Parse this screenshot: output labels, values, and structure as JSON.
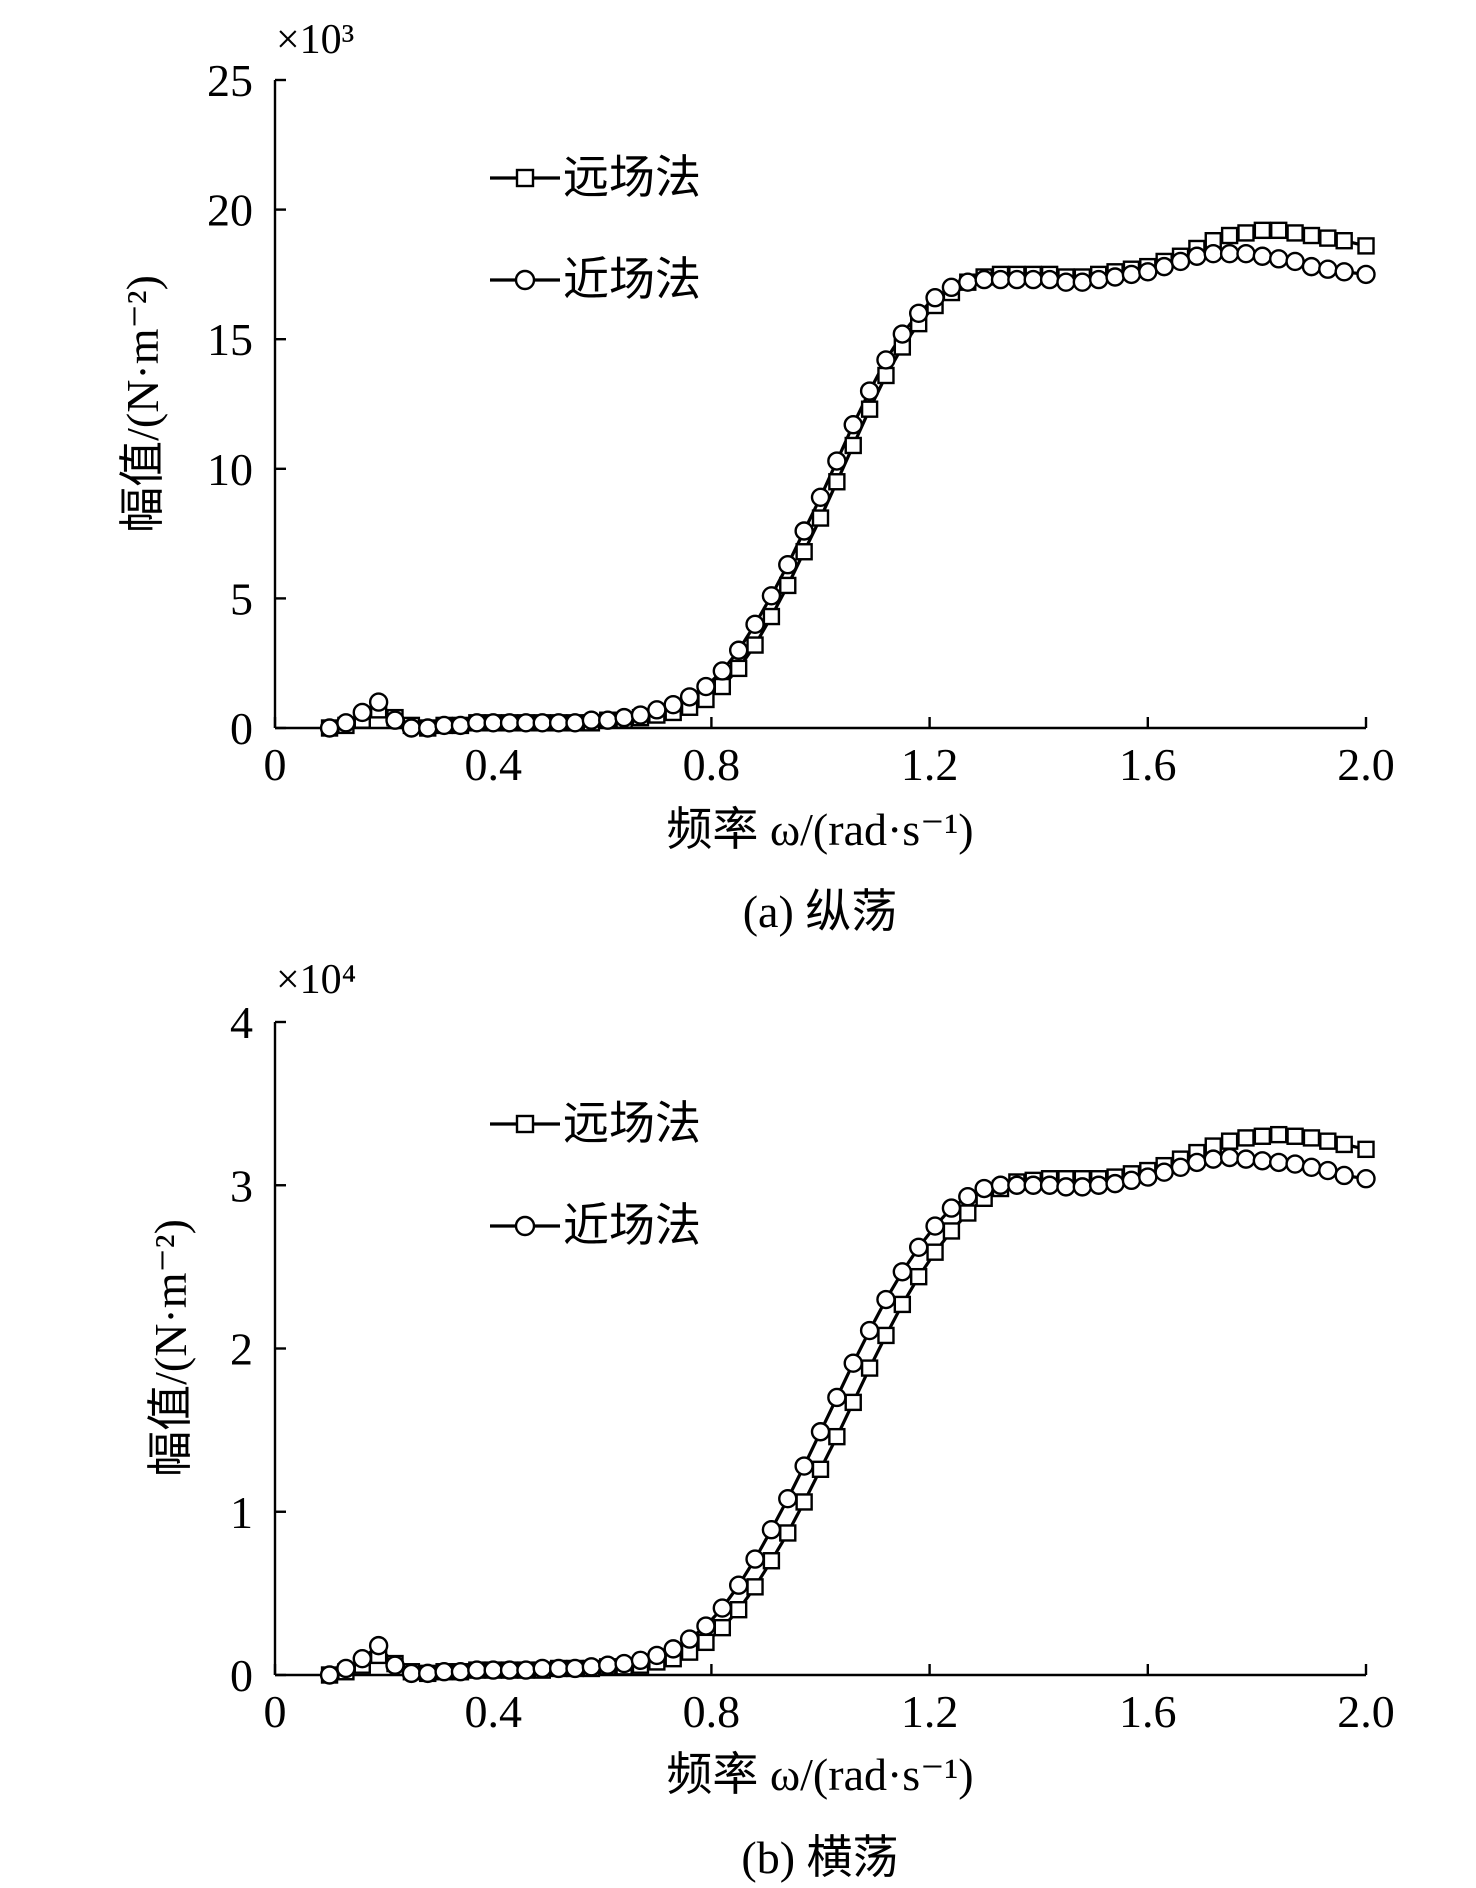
{
  "chart_data": [
    {
      "type": "line",
      "caption": "(a) 纵荡",
      "multiplier": "×10³",
      "xlabel": "频率 ω/(rad·s⁻¹)",
      "ylabel": "幅值/(N·m⁻²)",
      "xlim": [
        0,
        2.0
      ],
      "ylim": [
        0,
        25
      ],
      "xticks": [
        "0",
        "0.4",
        "0.8",
        "1.2",
        "1.6",
        "2.0"
      ],
      "yticks": [
        "0",
        "5",
        "10",
        "15",
        "20",
        "25"
      ],
      "legend": "upper-left",
      "grid": false,
      "series": [
        {
          "name": "远场法",
          "marker": "square",
          "x": [
            0.1,
            0.13,
            0.16,
            0.19,
            0.22,
            0.25,
            0.28,
            0.31,
            0.34,
            0.37,
            0.4,
            0.43,
            0.46,
            0.49,
            0.52,
            0.55,
            0.58,
            0.61,
            0.64,
            0.67,
            0.7,
            0.73,
            0.76,
            0.79,
            0.82,
            0.85,
            0.88,
            0.91,
            0.94,
            0.97,
            1.0,
            1.03,
            1.06,
            1.09,
            1.12,
            1.15,
            1.18,
            1.21,
            1.24,
            1.27,
            1.3,
            1.33,
            1.36,
            1.39,
            1.42,
            1.45,
            1.48,
            1.51,
            1.54,
            1.57,
            1.6,
            1.63,
            1.66,
            1.69,
            1.72,
            1.75,
            1.78,
            1.81,
            1.84,
            1.87,
            1.9,
            1.93,
            1.96,
            2.0
          ],
          "values": [
            0.0,
            0.1,
            0.3,
            0.7,
            0.4,
            0.1,
            0.0,
            0.1,
            0.1,
            0.2,
            0.2,
            0.2,
            0.2,
            0.2,
            0.2,
            0.2,
            0.2,
            0.3,
            0.3,
            0.4,
            0.5,
            0.6,
            0.8,
            1.1,
            1.6,
            2.3,
            3.2,
            4.3,
            5.5,
            6.8,
            8.1,
            9.5,
            10.9,
            12.3,
            13.6,
            14.7,
            15.6,
            16.3,
            16.8,
            17.2,
            17.4,
            17.5,
            17.5,
            17.5,
            17.5,
            17.4,
            17.4,
            17.5,
            17.6,
            17.7,
            17.8,
            18.0,
            18.2,
            18.5,
            18.8,
            19.0,
            19.1,
            19.2,
            19.2,
            19.1,
            19.0,
            18.9,
            18.8,
            18.6
          ]
        },
        {
          "name": "近场法",
          "marker": "circle",
          "x": [
            0.1,
            0.13,
            0.16,
            0.19,
            0.22,
            0.25,
            0.28,
            0.31,
            0.34,
            0.37,
            0.4,
            0.43,
            0.46,
            0.49,
            0.52,
            0.55,
            0.58,
            0.61,
            0.64,
            0.67,
            0.7,
            0.73,
            0.76,
            0.79,
            0.82,
            0.85,
            0.88,
            0.91,
            0.94,
            0.97,
            1.0,
            1.03,
            1.06,
            1.09,
            1.12,
            1.15,
            1.18,
            1.21,
            1.24,
            1.27,
            1.3,
            1.33,
            1.36,
            1.39,
            1.42,
            1.45,
            1.48,
            1.51,
            1.54,
            1.57,
            1.6,
            1.63,
            1.66,
            1.69,
            1.72,
            1.75,
            1.78,
            1.81,
            1.84,
            1.87,
            1.9,
            1.93,
            1.96,
            2.0
          ],
          "values": [
            0.0,
            0.2,
            0.6,
            1.0,
            0.3,
            0.0,
            0.0,
            0.1,
            0.1,
            0.2,
            0.2,
            0.2,
            0.2,
            0.2,
            0.2,
            0.2,
            0.3,
            0.3,
            0.4,
            0.5,
            0.7,
            0.9,
            1.2,
            1.6,
            2.2,
            3.0,
            4.0,
            5.1,
            6.3,
            7.6,
            8.9,
            10.3,
            11.7,
            13.0,
            14.2,
            15.2,
            16.0,
            16.6,
            17.0,
            17.2,
            17.3,
            17.3,
            17.3,
            17.3,
            17.3,
            17.2,
            17.2,
            17.3,
            17.4,
            17.5,
            17.6,
            17.8,
            18.0,
            18.2,
            18.3,
            18.3,
            18.3,
            18.2,
            18.1,
            18.0,
            17.8,
            17.7,
            17.6,
            17.5
          ]
        }
      ]
    },
    {
      "type": "line",
      "caption": "(b) 横荡",
      "multiplier": "×10⁴",
      "xlabel": "频率 ω/(rad·s⁻¹)",
      "ylabel": "幅值/(N·m⁻²)",
      "xlim": [
        0,
        2.0
      ],
      "ylim": [
        0,
        4
      ],
      "xticks": [
        "0",
        "0.4",
        "0.8",
        "1.2",
        "1.6",
        "2.0"
      ],
      "yticks": [
        "0",
        "1",
        "2",
        "3",
        "4"
      ],
      "legend": "upper-left",
      "grid": false,
      "series": [
        {
          "name": "远场法",
          "marker": "square",
          "x": [
            0.1,
            0.13,
            0.16,
            0.19,
            0.22,
            0.25,
            0.28,
            0.31,
            0.34,
            0.37,
            0.4,
            0.43,
            0.46,
            0.49,
            0.52,
            0.55,
            0.58,
            0.61,
            0.64,
            0.67,
            0.7,
            0.73,
            0.76,
            0.79,
            0.82,
            0.85,
            0.88,
            0.91,
            0.94,
            0.97,
            1.0,
            1.03,
            1.06,
            1.09,
            1.12,
            1.15,
            1.18,
            1.21,
            1.24,
            1.27,
            1.3,
            1.33,
            1.36,
            1.39,
            1.42,
            1.45,
            1.48,
            1.51,
            1.54,
            1.57,
            1.6,
            1.63,
            1.66,
            1.69,
            1.72,
            1.75,
            1.78,
            1.81,
            1.84,
            1.87,
            1.9,
            1.93,
            1.96,
            2.0
          ],
          "values": [
            0.0,
            0.02,
            0.06,
            0.12,
            0.07,
            0.02,
            0.01,
            0.02,
            0.02,
            0.03,
            0.03,
            0.03,
            0.03,
            0.03,
            0.04,
            0.04,
            0.04,
            0.05,
            0.05,
            0.06,
            0.08,
            0.1,
            0.14,
            0.2,
            0.29,
            0.4,
            0.54,
            0.7,
            0.87,
            1.06,
            1.26,
            1.46,
            1.67,
            1.88,
            2.08,
            2.27,
            2.44,
            2.59,
            2.72,
            2.83,
            2.92,
            2.98,
            3.02,
            3.03,
            3.04,
            3.04,
            3.04,
            3.04,
            3.05,
            3.07,
            3.09,
            3.12,
            3.16,
            3.2,
            3.24,
            3.27,
            3.29,
            3.3,
            3.31,
            3.3,
            3.29,
            3.27,
            3.25,
            3.22
          ]
        },
        {
          "name": "近场法",
          "marker": "circle",
          "x": [
            0.1,
            0.13,
            0.16,
            0.19,
            0.22,
            0.25,
            0.28,
            0.31,
            0.34,
            0.37,
            0.4,
            0.43,
            0.46,
            0.49,
            0.52,
            0.55,
            0.58,
            0.61,
            0.64,
            0.67,
            0.7,
            0.73,
            0.76,
            0.79,
            0.82,
            0.85,
            0.88,
            0.91,
            0.94,
            0.97,
            1.0,
            1.03,
            1.06,
            1.09,
            1.12,
            1.15,
            1.18,
            1.21,
            1.24,
            1.27,
            1.3,
            1.33,
            1.36,
            1.39,
            1.42,
            1.45,
            1.48,
            1.51,
            1.54,
            1.57,
            1.6,
            1.63,
            1.66,
            1.69,
            1.72,
            1.75,
            1.78,
            1.81,
            1.84,
            1.87,
            1.9,
            1.93,
            1.96,
            2.0
          ],
          "values": [
            0.0,
            0.04,
            0.1,
            0.18,
            0.06,
            0.01,
            0.01,
            0.02,
            0.02,
            0.03,
            0.03,
            0.03,
            0.03,
            0.04,
            0.04,
            0.04,
            0.05,
            0.06,
            0.07,
            0.09,
            0.12,
            0.16,
            0.22,
            0.3,
            0.41,
            0.55,
            0.71,
            0.89,
            1.08,
            1.28,
            1.49,
            1.7,
            1.91,
            2.11,
            2.3,
            2.47,
            2.62,
            2.75,
            2.86,
            2.93,
            2.98,
            3.0,
            3.0,
            3.0,
            3.0,
            2.99,
            2.99,
            3.0,
            3.01,
            3.03,
            3.05,
            3.08,
            3.11,
            3.14,
            3.16,
            3.17,
            3.16,
            3.15,
            3.14,
            3.13,
            3.11,
            3.09,
            3.06,
            3.04
          ]
        }
      ]
    }
  ]
}
